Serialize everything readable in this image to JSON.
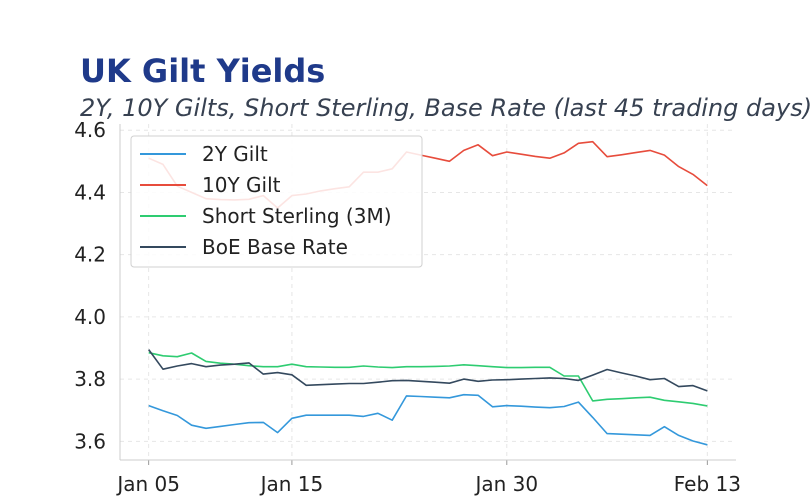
{
  "chart_data": {
    "type": "line",
    "title": "UK Gilt Yields",
    "subtitle": "2Y, 10Y Gilts, Short Sterling, Base Rate (last 45 trading days)",
    "xlabel": "",
    "ylabel": "",
    "x_ticks": [
      {
        "date": "2025-01-05",
        "label": "Jan 05"
      },
      {
        "date": "2025-01-15",
        "label": "Jan 15"
      },
      {
        "date": "2025-01-30",
        "label": "Jan 30"
      },
      {
        "date": "2025-02-13",
        "label": "Feb 13"
      }
    ],
    "y_ticks": [
      3.6,
      3.8,
      4.0,
      4.2,
      4.4,
      4.6
    ],
    "ylim": [
      3.54,
      4.62
    ],
    "xlim": [
      "2025-01-03",
      "2025-02-15"
    ],
    "grid": true,
    "legend_position": "top-left",
    "x": [
      "2025-01-05",
      "2025-01-06",
      "2025-01-07",
      "2025-01-08",
      "2025-01-09",
      "2025-01-10",
      "2025-01-11",
      "2025-01-12",
      "2025-01-13",
      "2025-01-14",
      "2025-01-15",
      "2025-01-16",
      "2025-01-17",
      "2025-01-18",
      "2025-01-19",
      "2025-01-20",
      "2025-01-21",
      "2025-01-22",
      "2025-01-23",
      "2025-01-24",
      "2025-01-25",
      "2025-01-26",
      "2025-01-27",
      "2025-01-28",
      "2025-01-29",
      "2025-01-30",
      "2025-01-31",
      "2025-02-01",
      "2025-02-02",
      "2025-02-03",
      "2025-02-04",
      "2025-02-05",
      "2025-02-06",
      "2025-02-07",
      "2025-02-08",
      "2025-02-09",
      "2025-02-10",
      "2025-02-11",
      "2025-02-12",
      "2025-02-13"
    ],
    "series": [
      {
        "name": "2Y Gilt",
        "color": "#3498db",
        "values": [
          3.715,
          3.698,
          3.683,
          3.652,
          3.642,
          3.648,
          3.654,
          3.66,
          3.661,
          3.628,
          3.674,
          3.684,
          3.684,
          3.684,
          3.684,
          3.68,
          3.69,
          3.668,
          3.746,
          3.744,
          3.742,
          3.74,
          3.75,
          3.748,
          3.711,
          3.715,
          3.713,
          3.71,
          3.708,
          3.712,
          3.726,
          3.677,
          3.625,
          3.623,
          3.621,
          3.619,
          3.647,
          3.619,
          3.601,
          3.589
        ]
      },
      {
        "name": "10Y Gilt",
        "color": "#e74c3c",
        "values": [
          4.51,
          4.49,
          4.42,
          4.4,
          4.38,
          4.377,
          4.376,
          4.378,
          4.39,
          4.35,
          4.39,
          4.395,
          4.405,
          4.412,
          4.418,
          4.465,
          4.465,
          4.476,
          4.53,
          4.52,
          4.51,
          4.5,
          4.535,
          4.553,
          4.518,
          4.53,
          4.523,
          4.516,
          4.51,
          4.527,
          4.558,
          4.563,
          4.515,
          4.521,
          4.528,
          4.535,
          4.52,
          4.483,
          4.458,
          4.422
        ]
      },
      {
        "name": "Short Sterling (3M)",
        "color": "#2ecc71",
        "values": [
          3.885,
          3.875,
          3.872,
          3.884,
          3.857,
          3.851,
          3.848,
          3.843,
          3.84,
          3.84,
          3.848,
          3.84,
          3.839,
          3.838,
          3.838,
          3.842,
          3.839,
          3.837,
          3.84,
          3.84,
          3.841,
          3.842,
          3.846,
          3.843,
          3.84,
          3.837,
          3.837,
          3.838,
          3.838,
          3.81,
          3.81,
          3.73,
          3.735,
          3.737,
          3.74,
          3.742,
          3.732,
          3.727,
          3.722,
          3.714
        ]
      },
      {
        "name": "BoE Base Rate",
        "color": "#34495e",
        "values": [
          3.895,
          3.832,
          3.842,
          3.85,
          3.84,
          3.845,
          3.848,
          3.852,
          3.816,
          3.821,
          3.814,
          3.78,
          3.782,
          3.784,
          3.786,
          3.786,
          3.79,
          3.795,
          3.796,
          3.793,
          3.79,
          3.787,
          3.8,
          3.793,
          3.797,
          3.798,
          3.8,
          3.802,
          3.804,
          3.802,
          3.796,
          3.813,
          3.831,
          3.82,
          3.81,
          3.798,
          3.802,
          3.776,
          3.779,
          3.762
        ]
      }
    ]
  }
}
